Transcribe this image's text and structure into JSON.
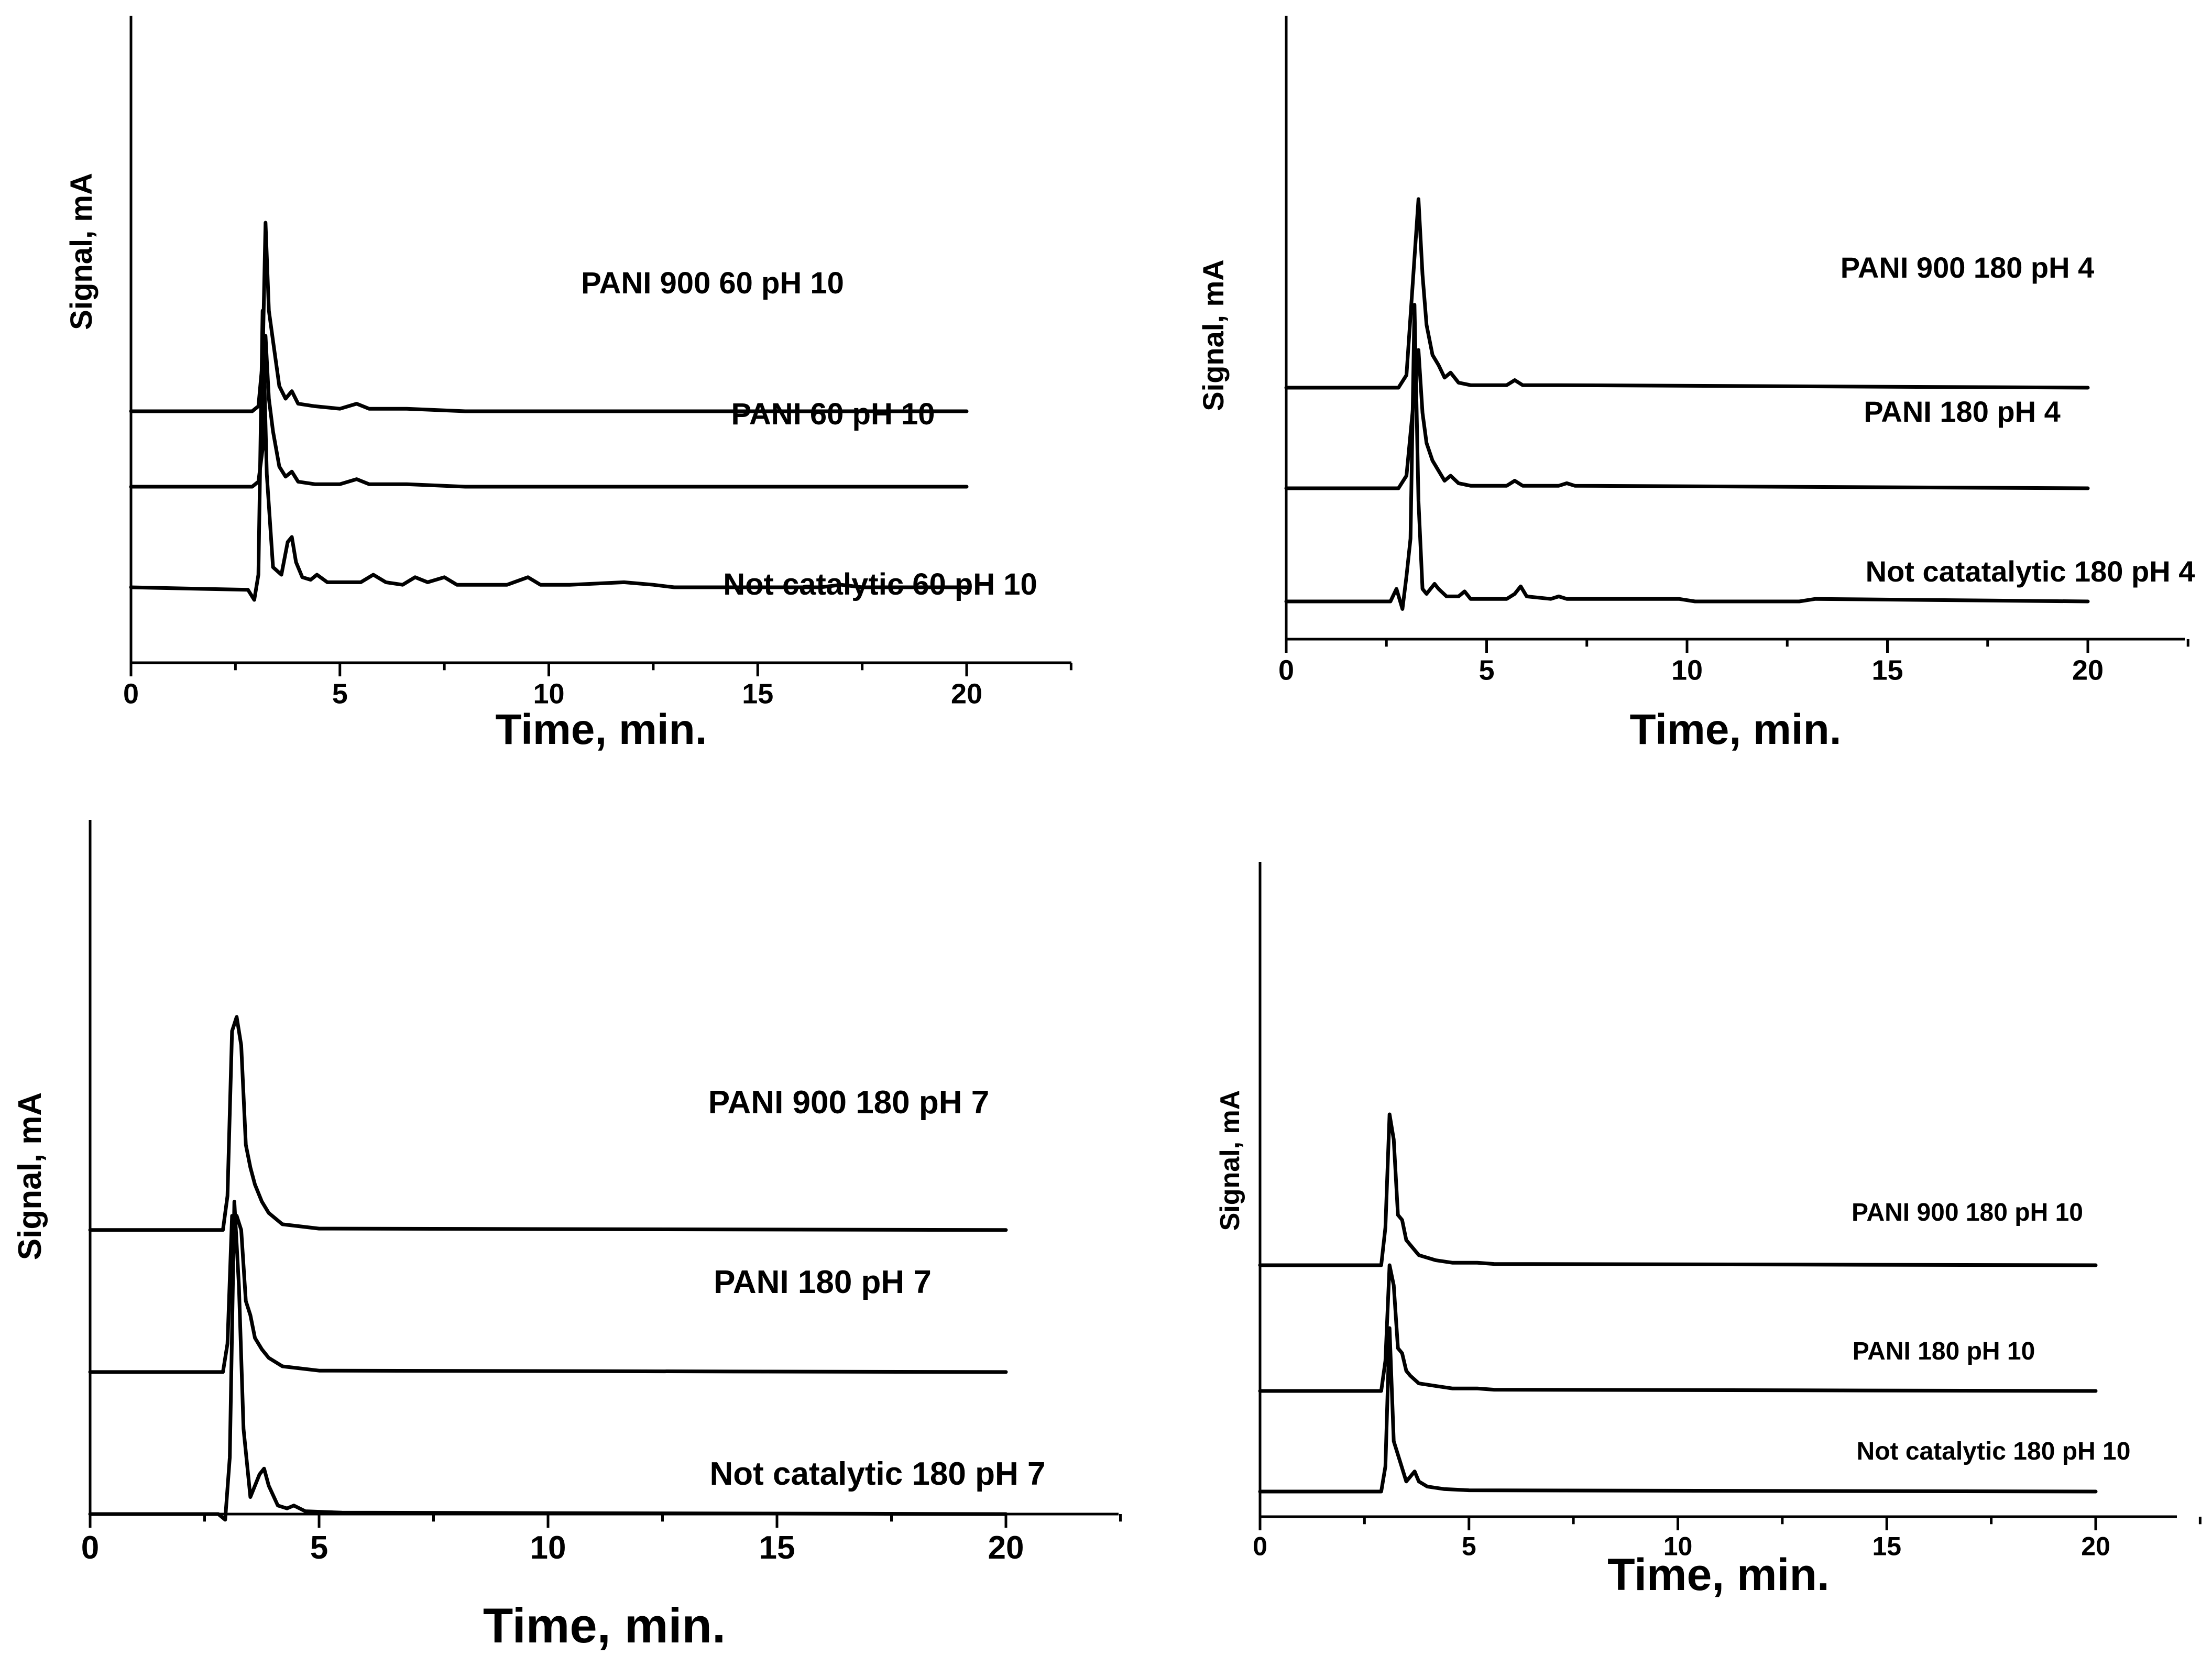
{
  "chart_data": [
    {
      "type": "line",
      "panel": "top-left",
      "xlabel": "Time, min.",
      "ylabel": "Signal, mA",
      "xlim": [
        0,
        22.5
      ],
      "xticks": [
        0,
        5,
        10,
        15,
        20
      ],
      "xtick_labels": [
        "0",
        "5",
        "10",
        "15",
        "20"
      ],
      "series": [
        {
          "name": "PANI 900 60 pH 10",
          "baseline": 100,
          "x": [
            0,
            2.9,
            3.05,
            3.15,
            3.22,
            3.3,
            3.4,
            3.55,
            3.7,
            3.85,
            4.0,
            4.4,
            5.0,
            5.4,
            5.7,
            6.6,
            8,
            20
          ],
          "values": [
            0,
            0,
            2,
            20,
            75,
            40,
            28,
            10,
            5,
            8,
            3,
            2,
            1,
            3,
            1,
            1,
            0,
            0
          ]
        },
        {
          "name": "PANI 60 pH 10",
          "baseline": 70,
          "x": [
            0,
            2.9,
            3.05,
            3.15,
            3.22,
            3.3,
            3.4,
            3.55,
            3.7,
            3.85,
            4.0,
            4.4,
            5.0,
            5.4,
            5.7,
            6.6,
            8,
            20
          ],
          "values": [
            0,
            0,
            2,
            15,
            60,
            35,
            22,
            8,
            4,
            6,
            2,
            1,
            1,
            3,
            1,
            1,
            0,
            0
          ]
        },
        {
          "name": "Not catalytic 60 pH 10",
          "baseline": 30,
          "x": [
            0,
            2.8,
            2.95,
            3.05,
            3.15,
            3.25,
            3.4,
            3.6,
            3.75,
            3.85,
            3.95,
            4.1,
            4.3,
            4.45,
            4.7,
            5.5,
            5.8,
            6.1,
            6.5,
            6.8,
            7.1,
            7.5,
            7.8,
            9.0,
            9.5,
            9.8,
            10.5,
            11.8,
            12.5,
            13,
            16.5,
            17.0,
            17.5,
            20
          ],
          "values": [
            0,
            -1,
            -5,
            5,
            110,
            45,
            8,
            5,
            18,
            20,
            10,
            4,
            3,
            5,
            2,
            2,
            5,
            2,
            1,
            4,
            2,
            4,
            1,
            1,
            4,
            1,
            1,
            2,
            1,
            0,
            0,
            1,
            0,
            0
          ]
        }
      ]
    },
    {
      "type": "line",
      "panel": "top-right",
      "xlabel": "Time, min.",
      "ylabel": "Signal, mA",
      "xlim": [
        0,
        22.5
      ],
      "xticks": [
        0,
        5,
        10,
        15,
        20
      ],
      "xtick_labels": [
        "0",
        "5",
        "10",
        "15",
        "20"
      ],
      "series": [
        {
          "name": "PANI 900 180 pH 4",
          "baseline": 100,
          "x": [
            0,
            2.8,
            3.0,
            3.15,
            3.3,
            3.4,
            3.5,
            3.65,
            3.8,
            3.95,
            4.1,
            4.3,
            4.6,
            5.5,
            5.7,
            5.9,
            6.8,
            20
          ],
          "values": [
            0,
            0,
            5,
            40,
            75,
            45,
            25,
            13,
            9,
            4,
            6,
            2,
            1,
            1,
            3,
            1,
            1,
            0
          ]
        },
        {
          "name": "PANI 180 pH 4",
          "baseline": 60,
          "x": [
            0,
            2.8,
            3.0,
            3.15,
            3.3,
            3.4,
            3.5,
            3.65,
            3.8,
            3.95,
            4.1,
            4.3,
            4.6,
            5.5,
            5.7,
            5.9,
            6.8,
            7.0,
            7.2,
            20
          ],
          "values": [
            0,
            0,
            5,
            30,
            55,
            30,
            18,
            11,
            7,
            3,
            5,
            2,
            1,
            1,
            3,
            1,
            1,
            2,
            1,
            0
          ]
        },
        {
          "name": "Not catatalytic 180 pH 4",
          "baseline": 15,
          "x": [
            0,
            2.6,
            2.75,
            2.9,
            3.0,
            3.1,
            3.2,
            3.3,
            3.4,
            3.5,
            3.7,
            3.8,
            4.0,
            4.3,
            4.45,
            4.6,
            5.5,
            5.7,
            5.85,
            6.0,
            6.6,
            6.8,
            7.0,
            7.5,
            9.8,
            10.2,
            12.8,
            13.2,
            20
          ],
          "values": [
            0,
            0,
            5,
            -3,
            10,
            25,
            118,
            40,
            5,
            3,
            7,
            5,
            2,
            2,
            4,
            1,
            1,
            3,
            6,
            2,
            1,
            2,
            1,
            1,
            1,
            0,
            0,
            1,
            0
          ]
        }
      ]
    },
    {
      "type": "line",
      "panel": "bottom-left",
      "xlabel": "Time, min.",
      "ylabel": "Signal, mA",
      "xlim": [
        0,
        22.5
      ],
      "xticks": [
        0,
        5,
        10,
        15,
        20
      ],
      "xtick_labels": [
        "0",
        "5",
        "10",
        "15",
        "20"
      ],
      "series": [
        {
          "name": "PANI 900 180 pH 7",
          "baseline": 100,
          "x": [
            0,
            2.9,
            3.0,
            3.1,
            3.2,
            3.3,
            3.4,
            3.5,
            3.6,
            3.75,
            3.9,
            4.2,
            5.0,
            20
          ],
          "values": [
            0,
            0,
            12,
            70,
            75,
            65,
            30,
            22,
            16,
            10,
            6,
            2,
            0.5,
            0
          ]
        },
        {
          "name": "PANI 180 pH 7",
          "baseline": 50,
          "x": [
            0,
            2.9,
            3.0,
            3.1,
            3.2,
            3.3,
            3.4,
            3.5,
            3.6,
            3.75,
            3.9,
            4.2,
            5.0,
            20
          ],
          "values": [
            0,
            0,
            10,
            55,
            55,
            50,
            25,
            20,
            12,
            8,
            5,
            2,
            0.5,
            0
          ]
        },
        {
          "name": "Not catalytic 180 pH 7",
          "baseline": 0,
          "x": [
            0,
            2.8,
            2.95,
            3.05,
            3.15,
            3.25,
            3.35,
            3.5,
            3.7,
            3.8,
            3.9,
            4.1,
            4.3,
            4.45,
            4.7,
            5.5,
            20
          ],
          "values": [
            0,
            0,
            -2,
            20,
            110,
            80,
            30,
            6,
            14,
            16,
            10,
            3,
            2,
            3,
            1,
            0.5,
            0
          ]
        }
      ]
    },
    {
      "type": "line",
      "panel": "bottom-right",
      "xlabel": "Time, min.",
      "ylabel": "Signal, mA",
      "xlim": [
        0,
        22.5
      ],
      "xticks": [
        0,
        5,
        10,
        15,
        20
      ],
      "xtick_labels": [
        "0",
        "5",
        "10",
        "15",
        "20"
      ],
      "series": [
        {
          "name": "PANI 900 180 pH 10",
          "baseline": 100,
          "x": [
            0,
            2.9,
            3.0,
            3.1,
            3.2,
            3.3,
            3.4,
            3.5,
            3.6,
            3.8,
            4.2,
            4.6,
            5.2,
            5.6,
            20
          ],
          "values": [
            0,
            0,
            15,
            60,
            50,
            20,
            18,
            10,
            8,
            4,
            2,
            1,
            1,
            0.5,
            0
          ]
        },
        {
          "name": "PANI 180 pH 10",
          "baseline": 50,
          "x": [
            0,
            2.9,
            3.0,
            3.1,
            3.2,
            3.3,
            3.4,
            3.5,
            3.6,
            3.8,
            4.2,
            4.6,
            5.2,
            5.6,
            20
          ],
          "values": [
            0,
            0,
            12,
            50,
            42,
            17,
            15,
            8,
            6,
            3,
            2,
            1,
            1,
            0.5,
            0
          ]
        },
        {
          "name": "Not catalytic 180 pH 10",
          "baseline": 10,
          "x": [
            0,
            2.9,
            3.0,
            3.1,
            3.2,
            3.35,
            3.5,
            3.6,
            3.7,
            3.8,
            4.0,
            4.4,
            5.0,
            20
          ],
          "values": [
            0,
            0,
            10,
            65,
            20,
            12,
            4,
            6,
            8,
            4,
            2,
            1,
            0.5,
            0
          ]
        }
      ]
    }
  ]
}
